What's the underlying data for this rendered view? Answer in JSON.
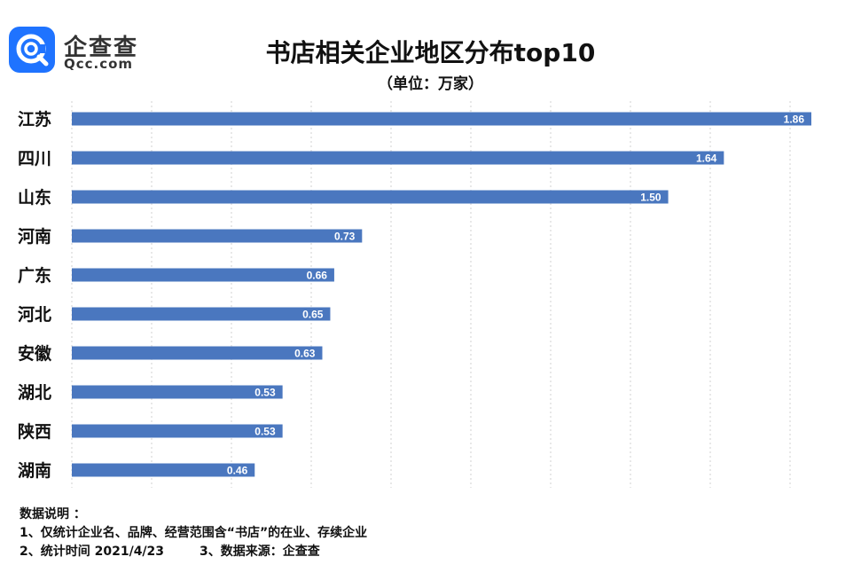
{
  "brand": {
    "name": "企查查",
    "url": "Qcc.com",
    "icon": "qcc-logo-icon"
  },
  "title": "书店相关企业地区分布top10",
  "subtitle": "（单位：万家）",
  "chart_data": {
    "type": "bar",
    "orientation": "horizontal",
    "categories": [
      "江苏",
      "四川",
      "山东",
      "河南",
      "广东",
      "河北",
      "安徽",
      "湖北",
      "陕西",
      "湖南"
    ],
    "values": [
      1.86,
      1.64,
      1.5,
      0.73,
      0.66,
      0.65,
      0.63,
      0.53,
      0.53,
      0.46
    ],
    "data_labels": [
      "1.86",
      "1.64",
      "1.50",
      "0.73",
      "0.66",
      "0.65",
      "0.63",
      "0.53",
      "0.53",
      "0.46"
    ],
    "xlim": [
      0,
      1.86
    ],
    "grid": "vertical dotted",
    "legend": "none",
    "bar_color": "#4a77bf"
  },
  "notes": {
    "heading": "数据说明 ：",
    "line1": "1、仅统计企业名、品牌、经营范围含“书店”的在业、存续企业",
    "line2a": "2、统计时间 2021/4/23",
    "line2b": "3、数据来源：企查查"
  }
}
